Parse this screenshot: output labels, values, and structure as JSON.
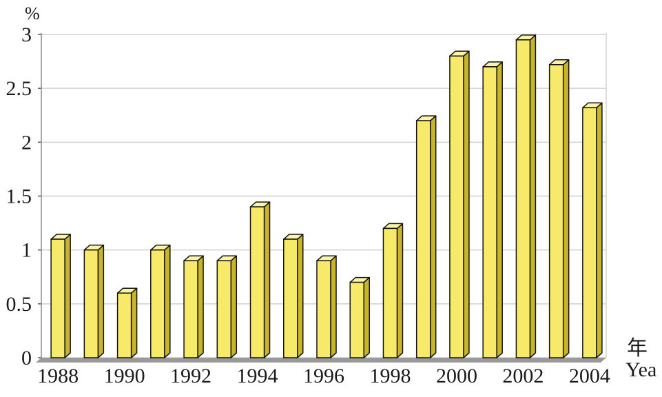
{
  "chart_data": {
    "type": "bar",
    "title": "",
    "ylabel": "%",
    "xlabel": "年 Yea",
    "xlabel_lines": [
      "年",
      "Yea"
    ],
    "ylim": [
      0,
      3
    ],
    "yticks": [
      "0",
      "0.5",
      "1",
      "1.5",
      "2",
      "2.5",
      "3"
    ],
    "grid": true,
    "categories": [
      "1988",
      "1989",
      "1990",
      "1991",
      "1992",
      "1993",
      "1994",
      "1995",
      "1996",
      "1997",
      "1998",
      "1999",
      "2000",
      "2001",
      "2002",
      "2003",
      "2004"
    ],
    "xtick_labels": [
      "1988",
      "1990",
      "1992",
      "1994",
      "1996",
      "1998",
      "2000",
      "2002",
      "2004"
    ],
    "values": [
      1.1,
      1.0,
      0.6,
      1.0,
      0.9,
      0.9,
      1.4,
      1.1,
      0.9,
      0.7,
      1.2,
      2.2,
      2.8,
      2.7,
      2.95,
      2.72,
      2.32
    ],
    "colors": {
      "bar_front": "#f7e96a",
      "bar_side": "#c9b52a",
      "bar_top": "#fbf3a8",
      "outline": "#111111",
      "grid": "#d0d0d0",
      "floor": "#9a9a9a"
    }
  }
}
